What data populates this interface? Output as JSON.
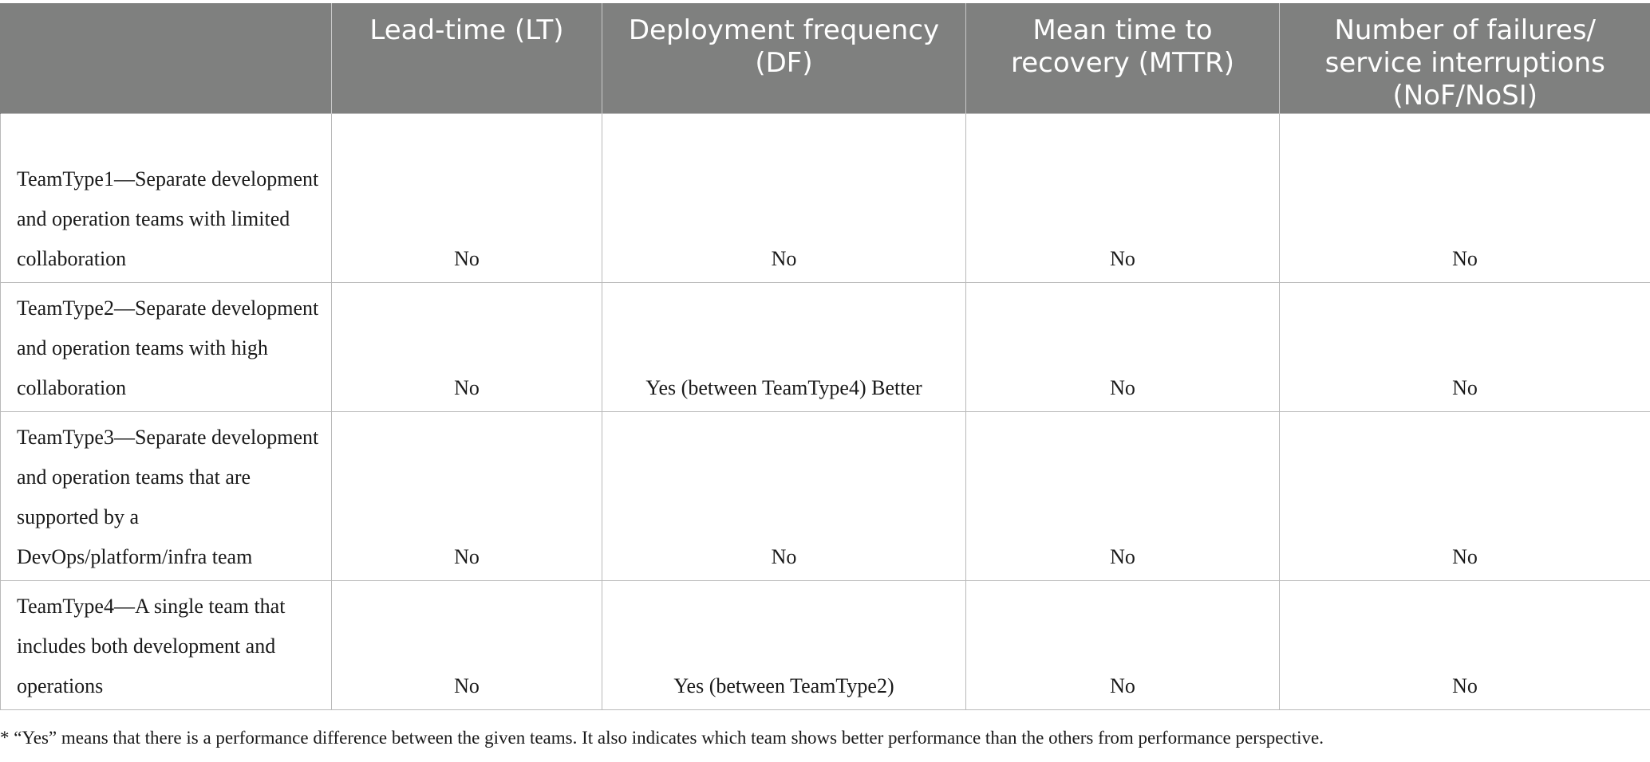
{
  "table": {
    "headers": [
      "",
      "Lead-time (LT)",
      "Deployment frequency (DF)",
      "Mean time to recovery (MTTR)",
      "Number of failures/ service interruptions (NoF/NoSI)"
    ],
    "rows": [
      {
        "team": "TeamType1—Separate development and operation teams with limited collaboration",
        "lt": "No",
        "df": "No",
        "mttr": "No",
        "nof": "No"
      },
      {
        "team": "TeamType2—Separate development and operation teams with high collaboration",
        "lt": "No",
        "df": "Yes (between TeamType4) Better",
        "mttr": "No",
        "nof": "No"
      },
      {
        "team": "TeamType3—Separate development and operation teams that are supported by a DevOps/platform/infra team",
        "lt": "No",
        "df": "No",
        "mttr": "No",
        "nof": "No"
      },
      {
        "team": "TeamType4—A single team that includes both development and operations",
        "lt": "No",
        "df": "Yes (between TeamType2)",
        "mttr": "No",
        "nof": "No"
      }
    ]
  },
  "footnote": "* “Yes” means that there is a performance difference between the given teams. It also indicates which team shows better performance than the others from performance perspective."
}
